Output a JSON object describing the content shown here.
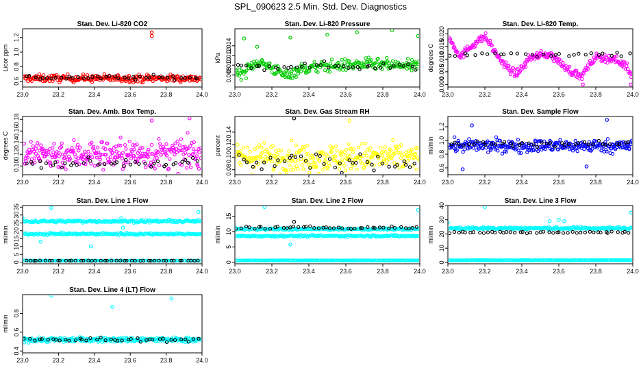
{
  "page_title": "SPL_090623  2.5 Min. Std. Dev. Diagnostics",
  "chart_data": [
    {
      "type": "scatter",
      "title": "Stan. Dev. Li-820 CO2",
      "ylabel": "Licor ppm",
      "xlim": [
        23.0,
        24.0
      ],
      "ylim": [
        0.52,
        1.32
      ],
      "yticks": [
        0.6,
        0.8,
        1.0,
        1.2
      ],
      "xticks": [
        23.0,
        23.2,
        23.4,
        23.6,
        23.8,
        24.0
      ],
      "series": [
        {
          "name": "fine",
          "color": "#ff0000",
          "n": 260,
          "base": 0.64,
          "spread": 0.05,
          "bands": []
        },
        {
          "name": "coarse",
          "color": "#000000",
          "n": 40,
          "base": 0.65,
          "spread": 0.03
        }
      ],
      "outliers": [
        {
          "x": 23.72,
          "y": 1.27,
          "color": "#ff0000"
        },
        {
          "x": 23.72,
          "y": 1.22,
          "color": "#ff0000"
        }
      ]
    },
    {
      "type": "scatter",
      "title": "Stan. Dev. Li-820 Pressure",
      "ylabel": "kPa",
      "xlim": [
        23.0,
        24.0
      ],
      "ylim": [
        0.0055,
        0.0175
      ],
      "yticks": [
        0.008,
        0.01,
        0.012,
        0.014
      ],
      "xticks": [
        23.0,
        23.2,
        23.4,
        23.6,
        23.8,
        24.0
      ],
      "series": [
        {
          "name": "fine",
          "color": "#00cc00",
          "n": 260,
          "base": 0.01,
          "spread": 0.0012,
          "wave": [
            {
              "x": 23.05,
              "y": 0.0085
            },
            {
              "x": 23.12,
              "y": 0.0108
            },
            {
              "x": 23.2,
              "y": 0.0095
            },
            {
              "x": 23.27,
              "y": 0.0078
            },
            {
              "x": 23.35,
              "y": 0.0092
            },
            {
              "x": 23.5,
              "y": 0.0098
            },
            {
              "x": 23.7,
              "y": 0.0102
            },
            {
              "x": 23.95,
              "y": 0.0098
            }
          ]
        },
        {
          "name": "coarse",
          "color": "#000000",
          "n": 40,
          "base": 0.0098,
          "spread": 0.0008
        }
      ],
      "outliers": [
        {
          "x": 23.05,
          "y": 0.0155,
          "color": "#00cc00"
        },
        {
          "x": 23.3,
          "y": 0.0157,
          "color": "#00cc00"
        },
        {
          "x": 23.5,
          "y": 0.0163,
          "color": "#00cc00"
        },
        {
          "x": 23.66,
          "y": 0.0168,
          "color": "#00cc00"
        },
        {
          "x": 23.85,
          "y": 0.0172,
          "color": "#00cc00"
        },
        {
          "x": 23.99,
          "y": 0.016,
          "color": "#00cc00"
        },
        {
          "x": 23.12,
          "y": 0.0138,
          "color": "#00cc00"
        }
      ]
    },
    {
      "type": "scatter",
      "title": "Stan. Dev. Li-820 Temp.",
      "ylabel": "degrees C",
      "xlim": [
        23.0,
        24.0
      ],
      "ylim": [
        -0.001,
        0.022
      ],
      "yticks": [
        0.0,
        0.005,
        0.01,
        0.015,
        0.02
      ],
      "xticks": [
        23.0,
        23.2,
        23.4,
        23.6,
        23.8,
        24.0
      ],
      "series": [
        {
          "name": "fine",
          "color": "#ff00ff",
          "n": 260,
          "base": 0.012,
          "spread": 0.0015,
          "wave": [
            {
              "x": 23.0,
              "y": 0.019
            },
            {
              "x": 23.07,
              "y": 0.011
            },
            {
              "x": 23.12,
              "y": 0.015
            },
            {
              "x": 23.2,
              "y": 0.019
            },
            {
              "x": 23.3,
              "y": 0.008
            },
            {
              "x": 23.37,
              "y": 0.004
            },
            {
              "x": 23.45,
              "y": 0.011
            },
            {
              "x": 23.55,
              "y": 0.012
            },
            {
              "x": 23.65,
              "y": 0.006
            },
            {
              "x": 23.72,
              "y": 0.003
            },
            {
              "x": 23.8,
              "y": 0.011
            },
            {
              "x": 23.9,
              "y": 0.01
            },
            {
              "x": 23.97,
              "y": 0.007
            },
            {
              "x": 24.0,
              "y": 0.002
            }
          ]
        },
        {
          "name": "coarse",
          "color": "#000000",
          "n": 30,
          "base": 0.012,
          "spread": 0.001
        }
      ],
      "outliers": [
        {
          "x": 23.73,
          "y": 0.0,
          "color": "#ff00ff"
        },
        {
          "x": 23.99,
          "y": 0.0,
          "color": "#ff00ff"
        }
      ]
    },
    {
      "type": "scatter",
      "title": "Stan. Dev. Amb. Box Temp.",
      "ylabel": "degrees C",
      "xlim": [
        23.0,
        24.0
      ],
      "ylim": [
        0.085,
        0.185
      ],
      "yticks": [
        0.1,
        0.12,
        0.14,
        0.16,
        0.18
      ],
      "xticks": [
        23.0,
        23.2,
        23.4,
        23.6,
        23.8,
        24.0
      ],
      "series": [
        {
          "name": "fine",
          "color": "#ff00ff",
          "n": 300,
          "base": 0.12,
          "spread": 0.025
        },
        {
          "name": "coarse",
          "color": "#000000",
          "n": 40,
          "base": 0.105,
          "spread": 0.007
        }
      ],
      "outliers": [
        {
          "x": 23.72,
          "y": 0.178,
          "color": "#ff00ff"
        },
        {
          "x": 23.93,
          "y": 0.182,
          "color": "#ff00ff"
        }
      ]
    },
    {
      "type": "scatter",
      "title": "Stan. Dev. Gas Stream RH",
      "ylabel": "percent",
      "xlim": [
        23.0,
        24.0
      ],
      "ylim": [
        0.072,
        0.165
      ],
      "yticks": [
        0.08,
        0.1,
        0.12,
        0.14
      ],
      "xticks": [
        23.0,
        23.2,
        23.4,
        23.6,
        23.8,
        24.0
      ],
      "series": [
        {
          "name": "fine",
          "color": "#ffff00",
          "n": 300,
          "base": 0.1,
          "spread": 0.022
        },
        {
          "name": "coarse",
          "color": "#000000",
          "n": 40,
          "base": 0.092,
          "spread": 0.013
        }
      ],
      "outliers": [
        {
          "x": 23.32,
          "y": 0.162,
          "color": "#000000"
        },
        {
          "x": 23.62,
          "y": 0.158,
          "color": "#ffff00"
        }
      ]
    },
    {
      "type": "scatter",
      "title": "Stan. Dev. Sample Flow",
      "ylabel": "ml/min",
      "xlim": [
        23.0,
        24.0
      ],
      "ylim": [
        0.5,
        1.35
      ],
      "yticks": [
        0.6,
        0.8,
        1.0,
        1.2
      ],
      "xticks": [
        23.0,
        23.2,
        23.4,
        23.6,
        23.8,
        24.0
      ],
      "series": [
        {
          "name": "fine",
          "color": "#0000ff",
          "n": 300,
          "base": 0.92,
          "spread": 0.09
        },
        {
          "name": "coarse",
          "color": "#000000",
          "n": 40,
          "base": 0.95,
          "spread": 0.04
        }
      ],
      "outliers": [
        {
          "x": 23.13,
          "y": 1.22,
          "color": "#0000ff"
        },
        {
          "x": 23.08,
          "y": 0.58,
          "color": "#0000ff"
        },
        {
          "x": 23.86,
          "y": 1.3,
          "color": "#0000ff"
        },
        {
          "x": 23.75,
          "y": 0.62,
          "color": "#0000ff"
        }
      ]
    },
    {
      "type": "scatter",
      "title": "Stan. Dev. Line 1 Flow",
      "ylabel": "ml/min",
      "xlim": [
        23.0,
        24.0
      ],
      "ylim": [
        -1,
        36
      ],
      "yticks": [
        0,
        5,
        10,
        15,
        20,
        25,
        30,
        35
      ],
      "xticks": [
        23.0,
        23.2,
        23.4,
        23.6,
        23.8,
        24.0
      ],
      "series": [
        {
          "name": "upper",
          "color": "#00ffff",
          "n": 200,
          "base": 26,
          "spread": 0.8
        },
        {
          "name": "mid",
          "color": "#00ffff",
          "n": 200,
          "base": 18,
          "spread": 0.7
        },
        {
          "name": "low",
          "color": "#00ffff",
          "n": 150,
          "base": 1.0,
          "spread": 0.1
        },
        {
          "name": "coarse",
          "color": "#000000",
          "n": 45,
          "base": 1.0,
          "spread": 0.1
        }
      ],
      "outliers": [
        {
          "x": 23.16,
          "y": 34.5,
          "color": "#00ffff"
        },
        {
          "x": 23.0,
          "y": 28,
          "color": "#00ffff"
        },
        {
          "x": 23.98,
          "y": 32,
          "color": "#00ffff"
        },
        {
          "x": 23.1,
          "y": 13,
          "color": "#00ffff"
        },
        {
          "x": 23.38,
          "y": 10,
          "color": "#00ffff"
        },
        {
          "x": 23.56,
          "y": 22,
          "color": "#00ffff"
        },
        {
          "x": 23.55,
          "y": 28,
          "color": "#00ffff"
        }
      ]
    },
    {
      "type": "scatter",
      "title": "Stan. Dev. Line 2 Flow",
      "ylabel": "ml/min",
      "xlim": [
        23.0,
        24.0
      ],
      "ylim": [
        -0.5,
        18.5
      ],
      "yticks": [
        0,
        5,
        10,
        15
      ],
      "xticks": [
        23.0,
        23.2,
        23.4,
        23.6,
        23.8,
        24.0
      ],
      "series": [
        {
          "name": "upper",
          "color": "#00ffff",
          "n": 200,
          "base": 10.8,
          "spread": 0.3
        },
        {
          "name": "mid",
          "color": "#00ffff",
          "n": 200,
          "base": 8.6,
          "spread": 0.3
        },
        {
          "name": "low",
          "color": "#00ffff",
          "n": 200,
          "base": 0.6,
          "spread": 0.05
        },
        {
          "name": "coarse",
          "color": "#000000",
          "n": 45,
          "base": 11.3,
          "spread": 0.4
        }
      ],
      "outliers": [
        {
          "x": 23.16,
          "y": 18,
          "color": "#00ffff"
        },
        {
          "x": 23.99,
          "y": 17,
          "color": "#00ffff"
        },
        {
          "x": 23.3,
          "y": 5.8,
          "color": "#00ffff"
        },
        {
          "x": 23.32,
          "y": 13.2,
          "color": "#000000"
        },
        {
          "x": 23.0,
          "y": 11.5,
          "color": "#00ffff"
        }
      ]
    },
    {
      "type": "scatter",
      "title": "Stan. Dev. Line 3 Flow",
      "ylabel": "ml/min",
      "xlim": [
        23.0,
        24.0
      ],
      "ylim": [
        -1,
        40
      ],
      "yticks": [
        0,
        10,
        20,
        30,
        40
      ],
      "xticks": [
        23.0,
        23.2,
        23.4,
        23.6,
        23.8,
        24.0
      ],
      "series": [
        {
          "name": "upper",
          "color": "#00ffff",
          "n": 250,
          "base": 24,
          "spread": 1.0
        },
        {
          "name": "low",
          "color": "#00ffff",
          "n": 200,
          "base": 1.5,
          "spread": 0.1
        },
        {
          "name": "coarse",
          "color": "#000000",
          "n": 45,
          "base": 21,
          "spread": 0.7
        }
      ],
      "outliers": [
        {
          "x": 23.2,
          "y": 39,
          "color": "#00ffff"
        },
        {
          "x": 23.99,
          "y": 35,
          "color": "#00ffff"
        },
        {
          "x": 23.0,
          "y": 28,
          "color": "#00ffff"
        },
        {
          "x": 23.6,
          "y": 30,
          "color": "#00ffff"
        },
        {
          "x": 23.55,
          "y": 29,
          "color": "#00ffff"
        },
        {
          "x": 23.63,
          "y": 29,
          "color": "#00ffff"
        }
      ]
    },
    {
      "type": "scatter",
      "title": "Stan. Dev. Line 4 (LT) Flow",
      "ylabel": "ml/min",
      "xlim": [
        23.0,
        24.0
      ],
      "ylim": [
        0.38,
        1.0
      ],
      "yticks": [
        0.4,
        0.6,
        0.8
      ],
      "xticks": [
        23.0,
        23.2,
        23.4,
        23.6,
        23.8,
        24.0
      ],
      "series": [
        {
          "name": "fine",
          "color": "#00ffff",
          "n": 300,
          "base": 0.52,
          "spread": 0.025
        },
        {
          "name": "coarse",
          "color": "#000000",
          "n": 40,
          "base": 0.52,
          "spread": 0.02
        }
      ],
      "outliers": [
        {
          "x": 23.16,
          "y": 0.99,
          "color": "#00ffff"
        },
        {
          "x": 23.83,
          "y": 0.96,
          "color": "#00ffff"
        },
        {
          "x": 23.5,
          "y": 0.87,
          "color": "#00ffff"
        }
      ]
    }
  ]
}
